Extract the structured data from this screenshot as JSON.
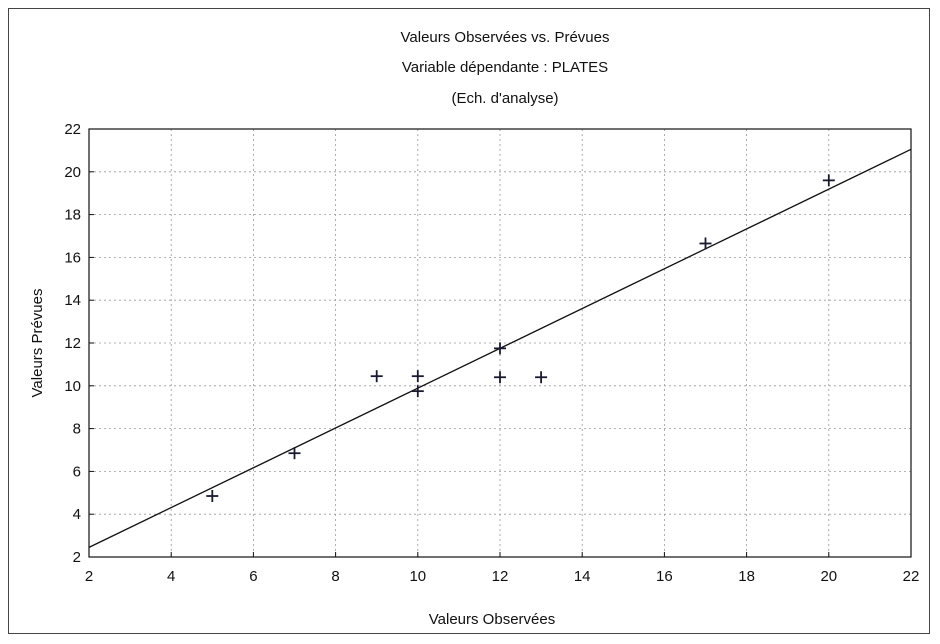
{
  "chart_data": {
    "type": "scatter",
    "title": "Valeurs Observées vs. Prévues",
    "subtitle": "Variable dépendante : PLATES",
    "subtitle2": "(Ech. d'analyse)",
    "xlabel": "Valeurs Observées",
    "ylabel": "Valeurs Prévues",
    "xlim": [
      2,
      22
    ],
    "ylim": [
      2,
      22
    ],
    "xticks": [
      2,
      4,
      6,
      8,
      10,
      12,
      14,
      16,
      18,
      20,
      22
    ],
    "yticks": [
      2,
      4,
      6,
      8,
      10,
      12,
      14,
      16,
      18,
      20,
      22
    ],
    "grid": true,
    "marker": "+",
    "series": [
      {
        "points": [
          {
            "x": 5,
            "y": 4.85
          },
          {
            "x": 7,
            "y": 6.85
          },
          {
            "x": 9,
            "y": 10.45
          },
          {
            "x": 10,
            "y": 10.45
          },
          {
            "x": 10,
            "y": 9.75
          },
          {
            "x": 12,
            "y": 11.75
          },
          {
            "x": 12,
            "y": 10.4
          },
          {
            "x": 13,
            "y": 10.4
          },
          {
            "x": 17,
            "y": 16.65
          },
          {
            "x": 20,
            "y": 19.6
          }
        ]
      }
    ],
    "fit_line": {
      "x": [
        2,
        22
      ],
      "y": [
        2.45,
        21.05
      ]
    },
    "colors": {
      "marks": "#1a1a2e",
      "line": "#111111",
      "grid": "#9a9a9a"
    }
  }
}
